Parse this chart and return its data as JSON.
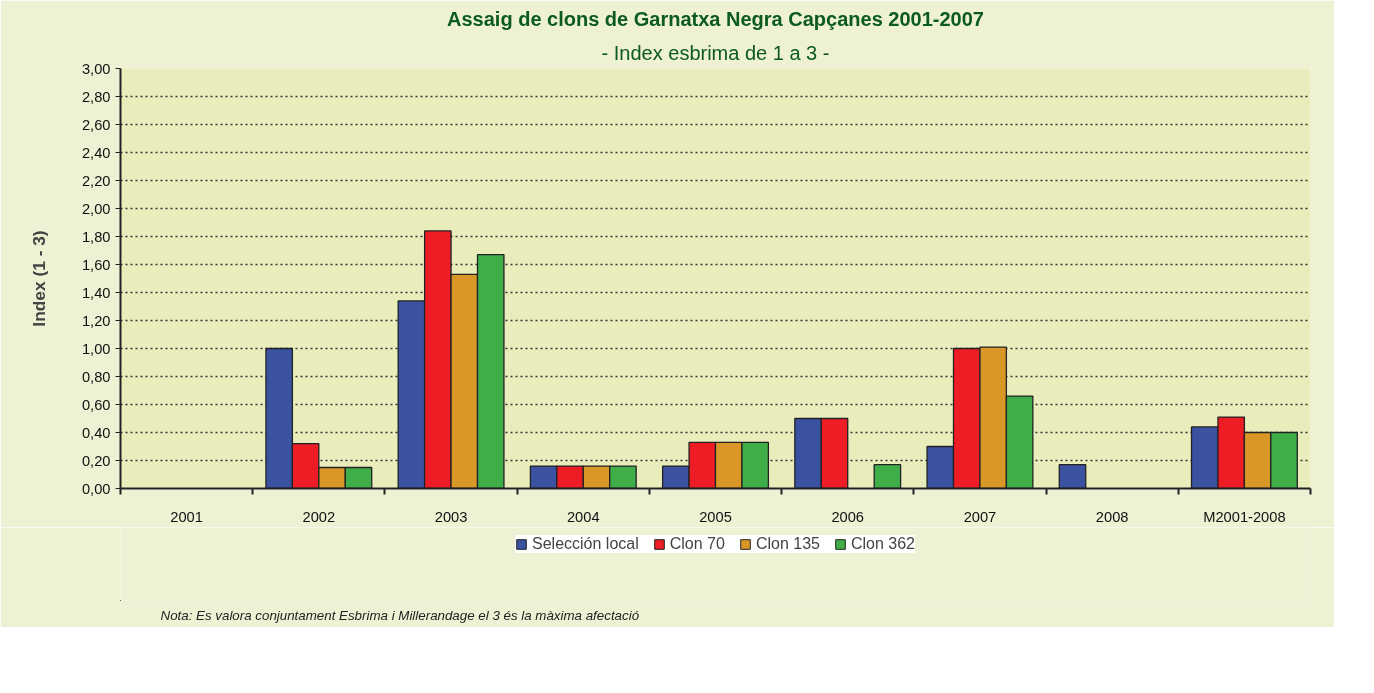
{
  "chart_data": {
    "type": "bar",
    "title": "Assaig de clons de Garnatxa Negra Capçanes 2001-2007",
    "subtitle": "- Index esbrima de 1 a 3 -",
    "ylabel": "Index (1 - 3)",
    "categories": [
      "2001",
      "2002",
      "2003",
      "2004",
      "2005",
      "2006",
      "2007",
      "2008",
      "M2001-2008"
    ],
    "series": [
      {
        "name": "Selección local",
        "color": "#3a52a0",
        "values": [
          null,
          1.0,
          1.34,
          0.16,
          0.16,
          0.5,
          0.3,
          0.17,
          0.44
        ]
      },
      {
        "name": "Clon 70",
        "color": "#ee1c25",
        "values": [
          null,
          0.32,
          1.84,
          0.16,
          0.33,
          0.5,
          1.0,
          null,
          0.51
        ]
      },
      {
        "name": "Clon 135",
        "color": "#d99727",
        "values": [
          null,
          0.15,
          1.53,
          0.16,
          0.33,
          null,
          1.01,
          null,
          0.4
        ]
      },
      {
        "name": "Clon 362",
        "color": "#3fae49",
        "values": [
          null,
          0.15,
          1.67,
          0.16,
          0.33,
          0.17,
          0.66,
          null,
          0.4
        ]
      }
    ],
    "ylim": [
      0,
      3
    ],
    "yticks": [
      {
        "value": 0,
        "label": "0,00"
      },
      {
        "value": 0.2,
        "label": "0,20"
      },
      {
        "value": 0.4,
        "label": "0,40"
      },
      {
        "value": 0.6,
        "label": "0,60"
      },
      {
        "value": 0.8,
        "label": "0,80"
      },
      {
        "value": 1.0,
        "label": "1,00"
      },
      {
        "value": 1.2,
        "label": "1,20"
      },
      {
        "value": 1.4,
        "label": "1,40"
      },
      {
        "value": 1.6,
        "label": "1,60"
      },
      {
        "value": 1.8,
        "label": "1,80"
      },
      {
        "value": 2.0,
        "label": "2,00"
      },
      {
        "value": 2.2,
        "label": "2,20"
      },
      {
        "value": 2.4,
        "label": "2,40"
      },
      {
        "value": 2.6,
        "label": "2,60"
      },
      {
        "value": 2.8,
        "label": "2,80"
      },
      {
        "value": 3.0,
        "label": "3,00"
      }
    ],
    "grid": "y",
    "legend": "bottom",
    "annotations": [
      "Nota: Es valora conjuntament Esbrima i Millerandage el 3 és la màxima afectació"
    ]
  }
}
